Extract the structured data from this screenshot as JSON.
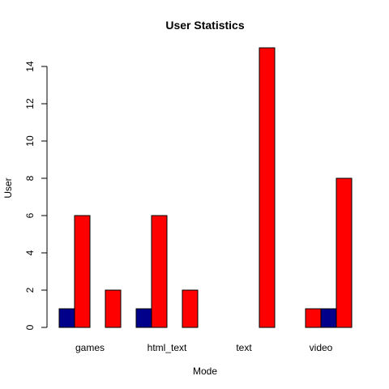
{
  "chart_data": {
    "type": "bar",
    "title": "User Statistics",
    "xlabel": "Mode",
    "ylabel": "User",
    "categories": [
      "games",
      "html_text",
      "text",
      "video"
    ],
    "series": [
      {
        "values": [
          1,
          1,
          0,
          0
        ],
        "color": "#00008B"
      },
      {
        "values": [
          6,
          6,
          0,
          1
        ],
        "color": "#FF0000"
      },
      {
        "values": [
          0,
          0,
          0,
          1
        ],
        "color": "#00008B"
      },
      {
        "values": [
          2,
          2,
          15,
          8
        ],
        "color": "#FF0000"
      }
    ],
    "ylim": [
      0,
      15
    ],
    "yticks": [
      0,
      2,
      4,
      6,
      8,
      10,
      12,
      14
    ],
    "grid": false,
    "legend": "none"
  }
}
